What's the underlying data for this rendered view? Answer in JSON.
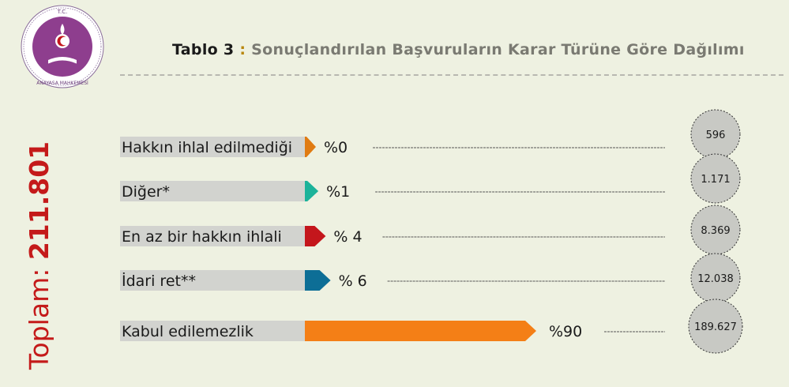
{
  "header": {
    "title_lead": "Tablo 3",
    "title_colon": " : ",
    "title_rest": "Sonuçlandırılan Başvuruların Karar Türüne Göre Dağılımı",
    "logo_top_text": "T.C.",
    "logo_bottom_text": "ANAYASA MAHKEMESİ"
  },
  "total": {
    "label": "Toplam: ",
    "value": "211.801"
  },
  "colors": {
    "background": "#eef1e1",
    "label_bar": "#d2d3cf",
    "circle": "#c8c9c4"
  },
  "chart_data": {
    "type": "bar",
    "orientation": "horizontal",
    "categories": [
      "Hakkın ihlal edilmediği",
      "Diğer*",
      "En az bir hakkın ihlali",
      "İdari ret**",
      "Kabul edilemezlik"
    ],
    "percent_labels": [
      "%0",
      "%1",
      "% 4",
      "% 6",
      "%90"
    ],
    "percents": [
      0,
      1,
      4,
      6,
      90
    ],
    "counts": [
      596,
      1171,
      8369,
      12038,
      189627
    ],
    "count_labels": [
      "596",
      "1.171",
      "8.369",
      "12.038",
      "189.627"
    ],
    "bar_colors": [
      "#e07b12",
      "#1cb39a",
      "#c4161c",
      "#0d6e96",
      "#f47f16"
    ]
  }
}
